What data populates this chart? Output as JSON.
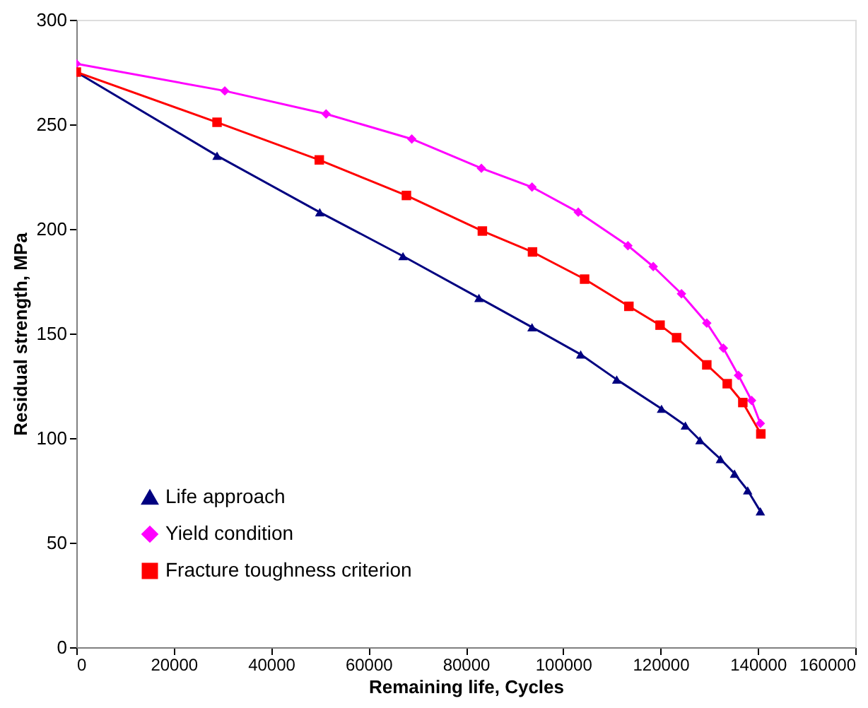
{
  "chart_data": {
    "type": "line",
    "xlabel": "Remaining life, Cycles",
    "ylabel": "Residual strength, MPa",
    "xlim": [
      0,
      160000
    ],
    "xticks": [
      0,
      20000,
      40000,
      60000,
      80000,
      100000,
      120000,
      140000,
      160000
    ],
    "ylim": [
      0,
      300
    ],
    "yticks": [
      0,
      50,
      100,
      150,
      200,
      250,
      300
    ],
    "grid": false,
    "legend": "bottom left",
    "line_style": "solid",
    "series": [
      {
        "name": "Life approach",
        "color": "#000080",
        "marker": "triangle",
        "x": [
          0,
          28900,
          50000,
          67100,
          82700,
          93600,
          103600,
          111000,
          120200,
          125100,
          128100,
          132300,
          135200,
          137900,
          140500
        ],
        "values": [
          275,
          235,
          208,
          187,
          167,
          153,
          140,
          128,
          114,
          106,
          99,
          90,
          83,
          75,
          65
        ]
      },
      {
        "name": "Yield condition",
        "color": "#ff00ff",
        "marker": "diamond",
        "x": [
          0,
          30500,
          51300,
          68900,
          83200,
          93600,
          103100,
          113300,
          118500,
          124300,
          129500,
          132900,
          136000,
          138700,
          140500
        ],
        "values": [
          279,
          266,
          255,
          243,
          229,
          220,
          208,
          192,
          182,
          169,
          155,
          143,
          130,
          118,
          107
        ]
      },
      {
        "name": "Fracture toughness criterion",
        "color": "#ff0000",
        "marker": "square",
        "x": [
          0,
          28900,
          49900,
          67800,
          83400,
          93700,
          104400,
          113500,
          119900,
          123300,
          129500,
          133700,
          136900,
          140600
        ],
        "values": [
          275,
          251,
          233,
          216,
          199,
          189,
          176,
          163,
          154,
          148,
          135,
          126,
          117,
          102
        ]
      }
    ]
  }
}
